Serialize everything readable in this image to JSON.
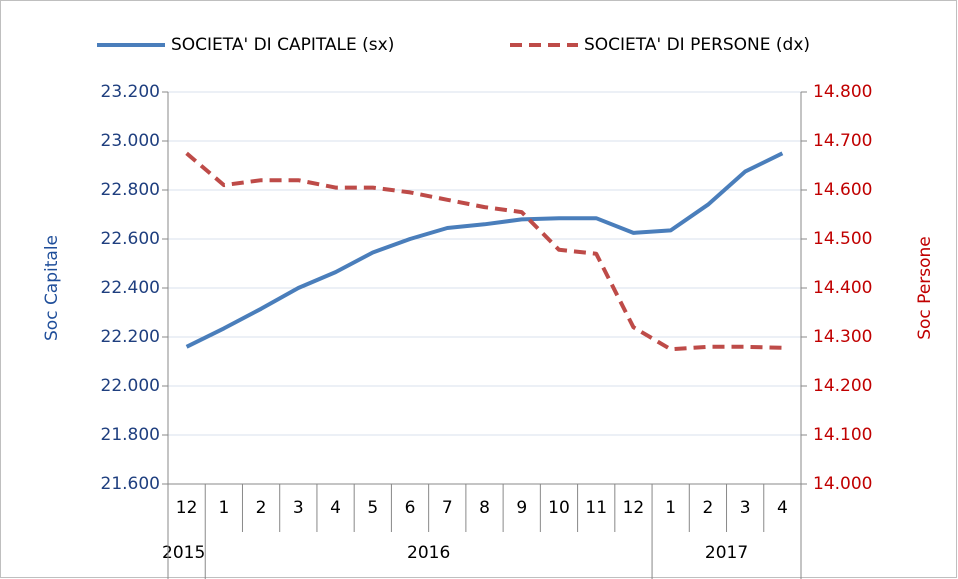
{
  "chart_data": {
    "type": "line",
    "categories": [
      "12",
      "1",
      "2",
      "3",
      "4",
      "5",
      "6",
      "7",
      "8",
      "9",
      "10",
      "11",
      "12",
      "1",
      "2",
      "3",
      "4"
    ],
    "x_groups": [
      {
        "label": "2015",
        "start": 0
      },
      {
        "label": "2016",
        "start": 1
      },
      {
        "label": "2017",
        "start": 13
      }
    ],
    "ylabel": "Soc Capitale",
    "y2label": "Soc Persone",
    "ylim": [
      21600,
      23200
    ],
    "yticks": [
      {
        "value": 21600,
        "label": "21.600"
      },
      {
        "value": 21800,
        "label": "21.800"
      },
      {
        "value": 22000,
        "label": "22.000"
      },
      {
        "value": 22200,
        "label": "22.200"
      },
      {
        "value": 22400,
        "label": "22.400"
      },
      {
        "value": 22600,
        "label": "22.600"
      },
      {
        "value": 22800,
        "label": "22.800"
      },
      {
        "value": 23000,
        "label": "23.000"
      },
      {
        "value": 23200,
        "label": "23.200"
      }
    ],
    "y2lim": [
      14000,
      14800
    ],
    "y2ticks": [
      {
        "value": 14000,
        "label": "14.000"
      },
      {
        "value": 14100,
        "label": "14.100"
      },
      {
        "value": 14200,
        "label": "14.200"
      },
      {
        "value": 14300,
        "label": "14.300"
      },
      {
        "value": 14400,
        "label": "14.400"
      },
      {
        "value": 14500,
        "label": "14.500"
      },
      {
        "value": 14600,
        "label": "14.600"
      },
      {
        "value": 14700,
        "label": "14.700"
      },
      {
        "value": 14800,
        "label": "14.800"
      }
    ],
    "grid": true,
    "legend": "top",
    "series": [
      {
        "name": "SOCIETA' DI CAPITALE (sx)",
        "color": "#4a7ebb",
        "dash": "solid",
        "values": [
          22160,
          22235,
          22315,
          22400,
          22465,
          22545,
          22600,
          22645,
          22660,
          22680,
          22685,
          22685,
          22625,
          22635,
          22740,
          22875,
          22950
        ]
      },
      {
        "name": "SOCIETA' DI PERSONE (dx)",
        "color": "#be4b48",
        "dash": "dashed",
        "axis": "y2",
        "values": [
          14675,
          14610,
          14620,
          14620,
          14605,
          14605,
          14595,
          14580,
          14565,
          14555,
          14478,
          14470,
          14320,
          14275,
          14280,
          14280,
          14278
        ]
      }
    ]
  }
}
